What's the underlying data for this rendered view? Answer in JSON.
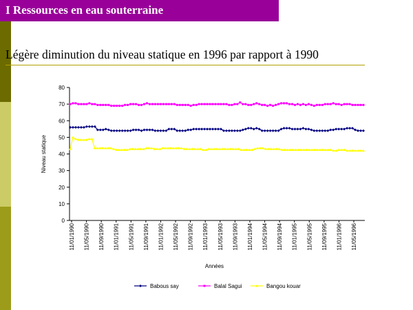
{
  "header": {
    "title": "I Ressources en eau souterraine"
  },
  "slide": {
    "subtitle": "Légère diminution  du niveau statique en 1996 par rapport à 1990"
  },
  "colors": {
    "title_bg": "#990099",
    "series1": "#000080",
    "series2": "#ff00ff",
    "series3": "#ffff00"
  },
  "chart_data": {
    "type": "line",
    "ylabel": "Niveau statique",
    "xlabel": "Années",
    "ylim": [
      0,
      80
    ],
    "yticks": [
      0,
      10,
      20,
      30,
      40,
      50,
      60,
      70,
      80
    ],
    "x_tick_labels": [
      "11/01/1990",
      "11/05/1990",
      "11/09/1990",
      "11/01/1991",
      "11/05/1991",
      "11/09/1991",
      "11/01/1992",
      "11/05/1992",
      "11/09/1992",
      "11/01/1993",
      "11/05/1993",
      "11/09/1993",
      "11/01/1994",
      "11/05/1994",
      "11/09/1994",
      "11/01/1995",
      "11/05/1995",
      "11/09/1995",
      "11/01/1996",
      "11/05/1996"
    ],
    "legend_position": "bottom",
    "series": [
      {
        "name": "Babous say",
        "color": "#000080",
        "marker": "diamond",
        "values": [
          56,
          56,
          56,
          56,
          56,
          56,
          56.5,
          56.5,
          56.5,
          56.5,
          54.5,
          54.5,
          54.5,
          55,
          54.5,
          54,
          54,
          54,
          54,
          54,
          54,
          54,
          54,
          54.5,
          54.5,
          54.5,
          54,
          54.5,
          54.5,
          54.5,
          54.5,
          54,
          54,
          54,
          54,
          54,
          55,
          55,
          55,
          54,
          54,
          54,
          54,
          54.5,
          54.5,
          55,
          55,
          55,
          55,
          55,
          55,
          55,
          55,
          55,
          55,
          55,
          54,
          54,
          54,
          54,
          54,
          54,
          54,
          54.5,
          55,
          55.5,
          55.5,
          55,
          55.5,
          55,
          54,
          54,
          54,
          54,
          54,
          54,
          54,
          55,
          55.5,
          55.5,
          55.5,
          55,
          55,
          55,
          55,
          55.5,
          55,
          55,
          54.5,
          54,
          54,
          54,
          54,
          54,
          54,
          54.5,
          54.5,
          55,
          55,
          55,
          55,
          55.5,
          55.5,
          55.5,
          54.5,
          54,
          54,
          54
        ]
      },
      {
        "name": "Balal Sagui",
        "color": "#ff00ff",
        "marker": "square",
        "values": [
          70,
          70.5,
          70.5,
          70,
          70,
          70,
          70,
          70.5,
          70,
          70,
          69.5,
          69.5,
          69.5,
          69.5,
          69.5,
          69,
          69,
          69,
          69,
          69,
          69.5,
          69.5,
          70,
          70,
          70,
          69.5,
          69.5,
          70,
          70.5,
          70,
          70,
          70,
          70,
          70,
          70,
          70,
          70,
          70,
          70,
          69.5,
          69.5,
          69.5,
          69.5,
          69.5,
          69,
          69.5,
          69.5,
          70,
          70,
          70,
          70,
          70,
          70,
          70,
          70,
          70,
          70,
          70,
          69.5,
          69.5,
          70,
          70,
          71,
          70,
          70,
          69.5,
          69.5,
          70,
          70.5,
          70,
          69.5,
          69.5,
          69,
          69.5,
          69,
          69.5,
          70,
          70.5,
          70.5,
          70.5,
          70,
          70,
          69.5,
          70,
          69.5,
          70,
          69.5,
          70,
          69.5,
          69,
          69.5,
          69.5,
          69.5,
          70,
          70,
          70,
          70.5,
          70,
          70,
          69.5,
          70,
          70,
          70,
          69.5,
          69.5,
          69.5,
          69.5,
          69.5
        ]
      },
      {
        "name": "Bangou kouar",
        "color": "#ffff00",
        "marker": "triangle",
        "values": [
          43,
          50,
          49,
          48.5,
          48.5,
          48.5,
          48.5,
          49,
          49,
          43.5,
          43.5,
          43.5,
          43.5,
          43.5,
          43.5,
          43.5,
          43,
          42.5,
          42.5,
          42.5,
          42.5,
          42.5,
          43,
          43,
          43,
          43,
          43,
          43,
          43.5,
          43.5,
          43.5,
          43,
          43,
          43,
          43.5,
          43.5,
          43.5,
          43.5,
          43.5,
          43.5,
          43.5,
          43.5,
          43,
          43,
          43,
          43,
          43,
          43,
          43,
          42.5,
          42.5,
          43,
          43,
          43,
          43,
          43,
          43,
          43,
          43,
          43,
          43,
          43,
          43,
          42.5,
          42.5,
          42.5,
          42.5,
          42.5,
          43,
          43.5,
          43.5,
          43.5,
          43,
          43,
          43,
          43,
          43,
          43,
          42.5,
          42.5,
          42.5,
          42.5,
          42.5,
          42.5,
          42.5,
          42.5,
          42.5,
          42.5,
          42.5,
          42.5,
          42.5,
          42.5,
          42.5,
          42.5,
          42.5,
          42.5,
          42.5,
          42,
          42,
          42.5,
          42.5,
          42.5,
          42,
          42,
          42,
          42,
          42,
          42,
          42
        ]
      }
    ]
  }
}
